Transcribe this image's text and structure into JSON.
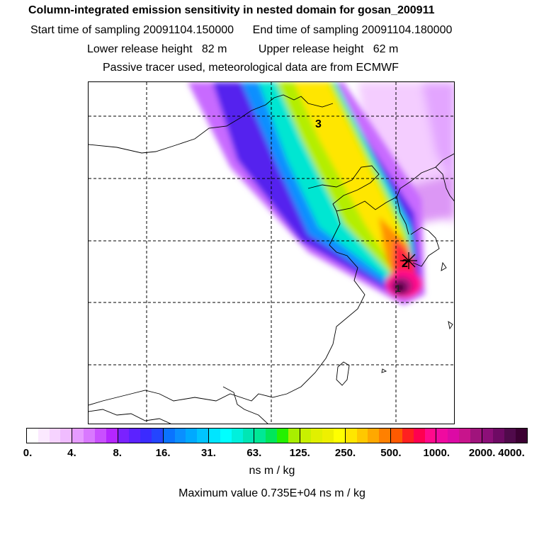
{
  "header": {
    "title": "Column-integrated emission sensitivity in nested domain for gosan_200911",
    "sampling_line": "Start time of sampling 20091104.150000      End time of sampling 20091104.180000",
    "release_line": "Lower release height   82 m          Upper release height   62 m",
    "tracer_line": "Passive tracer used, meteorological data are from ECMWF"
  },
  "map": {
    "labels": [
      "3",
      "2",
      "1"
    ],
    "receptor_marker": "star-icon"
  },
  "colorbar": {
    "ticks": [
      "0.",
      "4.",
      "8.",
      "16.",
      "31.",
      "63.",
      "125.",
      "250.",
      "500.",
      "1000.",
      "2000.",
      "4000."
    ],
    "units": "ns m / kg",
    "max_value_text": "Maximum value  0.735E+04 ns m / kg",
    "segments": [
      [
        "#ffffff",
        "#fbe9ff",
        "#f6d3ff",
        "#f0bcff"
      ],
      [
        "#e69bff",
        "#d978ff",
        "#c94fff",
        "#b526ff"
      ],
      [
        "#7a22ff",
        "#5c22ff",
        "#3b2bff",
        "#2445ff"
      ],
      [
        "#0a73ff",
        "#0a8fff",
        "#00a9ff",
        "#00c4ff"
      ],
      [
        "#00e5ff",
        "#00ffff",
        "#00f0dc",
        "#00e6b4"
      ],
      [
        "#00e896",
        "#00e65a",
        "#24f000",
        "#a8ee00"
      ],
      [
        "#c8f000",
        "#e0f000",
        "#eef000",
        "#ffff00"
      ],
      [
        "#ffe600",
        "#ffc800",
        "#ffa800",
        "#ff8000"
      ],
      [
        "#ff5a00",
        "#ff2020",
        "#ff0050",
        "#ff0a8c"
      ],
      [
        "#f00aa0",
        "#dc0aa5",
        "#c8148c",
        "#a0147c"
      ],
      [
        "#8c0f78",
        "#6e0a64",
        "#500a4b",
        "#3c0032"
      ]
    ]
  }
}
